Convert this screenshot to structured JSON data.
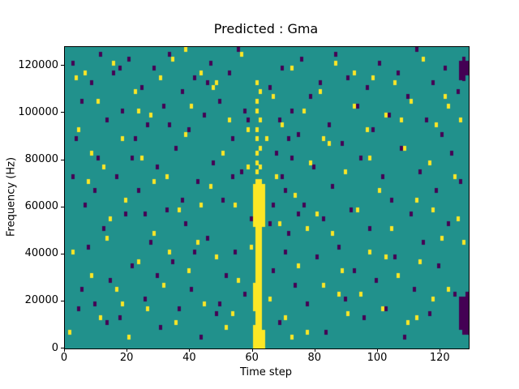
{
  "figure": {
    "title": "Predicted : Gma",
    "xlabel": "Time step",
    "ylabel": "Frequency (Hz)"
  },
  "chart_data": {
    "type": "heatmap",
    "title": "Predicted : Gma",
    "xlabel": "Time step",
    "ylabel": "Frequency (Hz)",
    "xlim": [
      0,
      129
    ],
    "ylim": [
      0,
      128000
    ],
    "x_ticks": [
      0,
      20,
      40,
      60,
      80,
      100,
      120
    ],
    "y_ticks": [
      0,
      20000,
      40000,
      60000,
      80000,
      100000,
      120000
    ],
    "grid_nx": 129,
    "grid_ny": 64,
    "bin_hz": 2000,
    "legend": "none",
    "colors": {
      "background": "#21918c",
      "high": "#fde725",
      "low": "#440154"
    },
    "yellow_rects": [
      [
        61,
        0,
        35
      ],
      [
        62,
        0,
        35
      ],
      [
        60,
        0,
        4
      ],
      [
        63,
        0,
        3
      ],
      [
        60,
        8,
        13
      ],
      [
        60,
        26,
        34
      ],
      [
        63,
        26,
        34
      ]
    ],
    "dark_rects": [
      [
        126,
        4,
        10
      ],
      [
        127,
        3,
        10
      ],
      [
        128,
        3,
        11
      ],
      [
        126,
        57,
        60
      ],
      [
        127,
        57,
        61
      ],
      [
        128,
        58,
        60
      ]
    ],
    "yellow_cells": [
      [
        61,
        37
      ],
      [
        62,
        38
      ],
      [
        61,
        39
      ],
      [
        61,
        41
      ],
      [
        62,
        42
      ],
      [
        61,
        44
      ],
      [
        61,
        46
      ],
      [
        62,
        48
      ],
      [
        61,
        50
      ],
      [
        61,
        52
      ],
      [
        62,
        54
      ],
      [
        61,
        56
      ],
      [
        1,
        3
      ],
      [
        2,
        20
      ],
      [
        4,
        46
      ],
      [
        6,
        58
      ],
      [
        7,
        35
      ],
      [
        8,
        15
      ],
      [
        10,
        52
      ],
      [
        11,
        6
      ],
      [
        12,
        38
      ],
      [
        14,
        27
      ],
      [
        15,
        60
      ],
      [
        16,
        12
      ],
      [
        18,
        44
      ],
      [
        19,
        31
      ],
      [
        20,
        2
      ],
      [
        22,
        54
      ],
      [
        23,
        18
      ],
      [
        24,
        40
      ],
      [
        26,
        8
      ],
      [
        27,
        49
      ],
      [
        28,
        24
      ],
      [
        30,
        57
      ],
      [
        31,
        13
      ],
      [
        32,
        36
      ],
      [
        34,
        61
      ],
      [
        35,
        5
      ],
      [
        36,
        29
      ],
      [
        38,
        45
      ],
      [
        39,
        16
      ],
      [
        40,
        51
      ],
      [
        42,
        22
      ],
      [
        43,
        58
      ],
      [
        44,
        9
      ],
      [
        46,
        34
      ],
      [
        47,
        55
      ],
      [
        48,
        19
      ],
      [
        50,
        41
      ],
      [
        51,
        4
      ],
      [
        52,
        48
      ],
      [
        54,
        30
      ],
      [
        55,
        14
      ],
      [
        56,
        62
      ],
      [
        58,
        38
      ],
      [
        59,
        21
      ],
      [
        64,
        44
      ],
      [
        65,
        10
      ],
      [
        66,
        53
      ],
      [
        68,
        26
      ],
      [
        69,
        47
      ],
      [
        70,
        6
      ],
      [
        72,
        59
      ],
      [
        73,
        32
      ],
      [
        74,
        17
      ],
      [
        76,
        50
      ],
      [
        77,
        3
      ],
      [
        78,
        39
      ],
      [
        80,
        28
      ],
      [
        81,
        54
      ],
      [
        82,
        13
      ],
      [
        84,
        43
      ],
      [
        85,
        24
      ],
      [
        86,
        60
      ],
      [
        88,
        16
      ],
      [
        89,
        37
      ],
      [
        90,
        7
      ],
      [
        92,
        51
      ],
      [
        93,
        29
      ],
      [
        94,
        11
      ],
      [
        96,
        46
      ],
      [
        97,
        20
      ],
      [
        98,
        57
      ],
      [
        100,
        33
      ],
      [
        101,
        8
      ],
      [
        102,
        49
      ],
      [
        104,
        25
      ],
      [
        105,
        56
      ],
      [
        106,
        15
      ],
      [
        108,
        42
      ],
      [
        109,
        5
      ],
      [
        110,
        52
      ],
      [
        112,
        31
      ],
      [
        113,
        18
      ],
      [
        114,
        61
      ],
      [
        116,
        39
      ],
      [
        117,
        10
      ],
      [
        118,
        47
      ],
      [
        120,
        23
      ],
      [
        121,
        53
      ],
      [
        122,
        12
      ],
      [
        124,
        36
      ],
      [
        125,
        27
      ],
      [
        126,
        48
      ],
      [
        3,
        57
      ],
      [
        8,
        41
      ],
      [
        13,
        23
      ],
      [
        18,
        9
      ],
      [
        23,
        50
      ],
      [
        28,
        35
      ],
      [
        33,
        20
      ],
      [
        38,
        63
      ],
      [
        43,
        30
      ],
      [
        48,
        56
      ],
      [
        53,
        7
      ],
      [
        58,
        46
      ],
      [
        67,
        36
      ],
      [
        72,
        2
      ],
      [
        77,
        25
      ],
      [
        82,
        44
      ],
      [
        87,
        11
      ],
      [
        92,
        58
      ],
      [
        97,
        40
      ],
      [
        102,
        19
      ],
      [
        107,
        48
      ],
      [
        112,
        6
      ],
      [
        117,
        29
      ],
      [
        122,
        51
      ],
      [
        127,
        22
      ]
    ],
    "dark_cells": [
      [
        2,
        60
      ],
      [
        2,
        36
      ],
      [
        3,
        44
      ],
      [
        4,
        8
      ],
      [
        5,
        52
      ],
      [
        5,
        12
      ],
      [
        6,
        30
      ],
      [
        7,
        21
      ],
      [
        8,
        56
      ],
      [
        9,
        9
      ],
      [
        9,
        33
      ],
      [
        10,
        40
      ],
      [
        11,
        62
      ],
      [
        12,
        25
      ],
      [
        13,
        48
      ],
      [
        13,
        5
      ],
      [
        14,
        14
      ],
      [
        15,
        58
      ],
      [
        16,
        36
      ],
      [
        17,
        6
      ],
      [
        17,
        59
      ],
      [
        18,
        50
      ],
      [
        19,
        28
      ],
      [
        20,
        61
      ],
      [
        21,
        17
      ],
      [
        21,
        40
      ],
      [
        22,
        44
      ],
      [
        23,
        33
      ],
      [
        24,
        55
      ],
      [
        25,
        10
      ],
      [
        25,
        28
      ],
      [
        26,
        47
      ],
      [
        27,
        22
      ],
      [
        28,
        59
      ],
      [
        29,
        38
      ],
      [
        29,
        15
      ],
      [
        30,
        4
      ],
      [
        31,
        51
      ],
      [
        32,
        29
      ],
      [
        33,
        62
      ],
      [
        33,
        47
      ],
      [
        34,
        18
      ],
      [
        35,
        42
      ],
      [
        36,
        8
      ],
      [
        37,
        54
      ],
      [
        37,
        31
      ],
      [
        38,
        26
      ],
      [
        39,
        46
      ],
      [
        40,
        12
      ],
      [
        41,
        57
      ],
      [
        41,
        20
      ],
      [
        42,
        35
      ],
      [
        43,
        2
      ],
      [
        44,
        49
      ],
      [
        45,
        23
      ],
      [
        45,
        56
      ],
      [
        46,
        60
      ],
      [
        47,
        39
      ],
      [
        48,
        7
      ],
      [
        49,
        52
      ],
      [
        49,
        9
      ],
      [
        50,
        31
      ],
      [
        51,
        15
      ],
      [
        52,
        58
      ],
      [
        53,
        44
      ],
      [
        53,
        36
      ],
      [
        54,
        20
      ],
      [
        55,
        63
      ],
      [
        56,
        37
      ],
      [
        57,
        11
      ],
      [
        57,
        50
      ],
      [
        58,
        48
      ],
      [
        59,
        27
      ],
      [
        65,
        55
      ],
      [
        66,
        16
      ],
      [
        67,
        41
      ],
      [
        68,
        5
      ],
      [
        69,
        59
      ],
      [
        70,
        33
      ],
      [
        71,
        24
      ],
      [
        72,
        50
      ],
      [
        73,
        13
      ],
      [
        74,
        45
      ],
      [
        75,
        61
      ],
      [
        76,
        30
      ],
      [
        77,
        9
      ],
      [
        78,
        53
      ],
      [
        79,
        38
      ],
      [
        80,
        19
      ],
      [
        81,
        56
      ],
      [
        82,
        27
      ],
      [
        83,
        3
      ],
      [
        84,
        47
      ],
      [
        85,
        34
      ],
      [
        86,
        62
      ],
      [
        87,
        21
      ],
      [
        88,
        43
      ],
      [
        89,
        10
      ],
      [
        90,
        57
      ],
      [
        91,
        29
      ],
      [
        92,
        16
      ],
      [
        93,
        51
      ],
      [
        94,
        40
      ],
      [
        95,
        6
      ],
      [
        96,
        55
      ],
      [
        97,
        25
      ],
      [
        98,
        46
      ],
      [
        99,
        14
      ],
      [
        100,
        60
      ],
      [
        101,
        36
      ],
      [
        102,
        8
      ],
      [
        103,
        49
      ],
      [
        104,
        31
      ],
      [
        105,
        19
      ],
      [
        106,
        58
      ],
      [
        107,
        42
      ],
      [
        108,
        2
      ],
      [
        109,
        53
      ],
      [
        110,
        28
      ],
      [
        111,
        12
      ],
      [
        112,
        63
      ],
      [
        113,
        37
      ],
      [
        114,
        22
      ],
      [
        115,
        48
      ],
      [
        116,
        7
      ],
      [
        117,
        56
      ],
      [
        118,
        33
      ],
      [
        119,
        17
      ],
      [
        120,
        45
      ],
      [
        121,
        59
      ],
      [
        122,
        26
      ],
      [
        123,
        41
      ],
      [
        124,
        11
      ],
      [
        125,
        54
      ],
      [
        126,
        35
      ],
      [
        66,
        30
      ],
      [
        69,
        36
      ],
      [
        71,
        44
      ],
      [
        74,
        28
      ],
      [
        68,
        48
      ],
      [
        72,
        40
      ],
      [
        65,
        26
      ],
      [
        70,
        20
      ]
    ]
  }
}
